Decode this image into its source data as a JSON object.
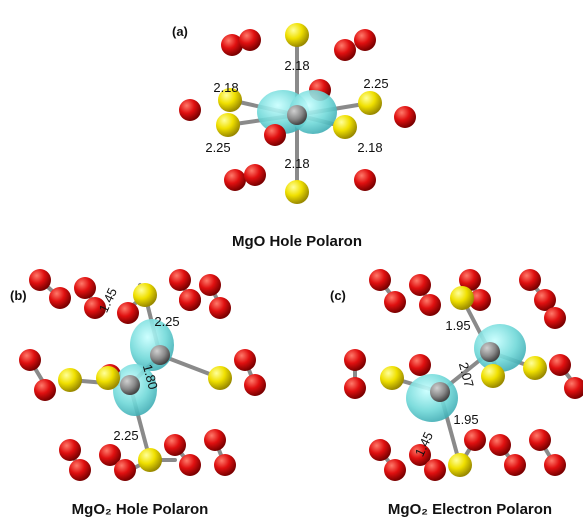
{
  "panels": [
    {
      "label": "(a)",
      "caption": "MgO Hole Polaron",
      "bond_labels": [
        "2.18",
        "2.18",
        "2.25",
        "2.25",
        "2.18",
        "2.18"
      ]
    },
    {
      "label": "(b)",
      "caption": "MgO₂ Hole Polaron",
      "bond_labels": [
        "1.45",
        "2.25",
        "1.80",
        "2.25"
      ]
    },
    {
      "label": "(c)",
      "caption": "MgO₂ Electron Polaron",
      "bond_labels": [
        "1.95",
        "2.07",
        "1.95",
        "1.45"
      ]
    }
  ]
}
